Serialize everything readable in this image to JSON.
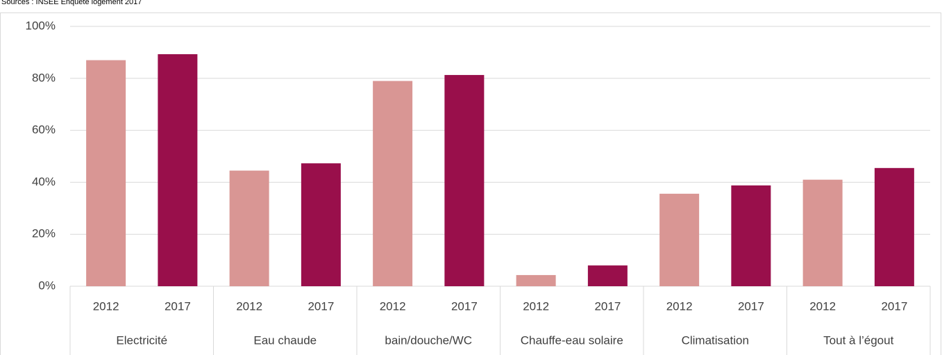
{
  "chart_data": {
    "type": "bar",
    "source": "Sources : INSEE Enquête logement 2017",
    "categories": [
      "Electricité",
      "Eau chaude",
      "bain/douche/WC",
      "Chauffe-eau solaire",
      "Climatisation",
      "Tout à l’égout"
    ],
    "series": [
      {
        "name": "2012",
        "color": "#d99694",
        "values": [
          87,
          44.5,
          79,
          4.3,
          35.6,
          41
        ]
      },
      {
        "name": "2017",
        "color": "#990f4b",
        "values": [
          89.3,
          47.3,
          81.3,
          8,
          38.8,
          45.5
        ]
      }
    ],
    "ylim": [
      0,
      100
    ],
    "yticks": [
      {
        "value": 0,
        "label": "0%"
      },
      {
        "value": 20,
        "label": "20%"
      },
      {
        "value": 40,
        "label": "40%"
      },
      {
        "value": 60,
        "label": "60%"
      },
      {
        "value": 80,
        "label": "80%"
      },
      {
        "value": 100,
        "label": "100%"
      }
    ],
    "grid": true
  }
}
